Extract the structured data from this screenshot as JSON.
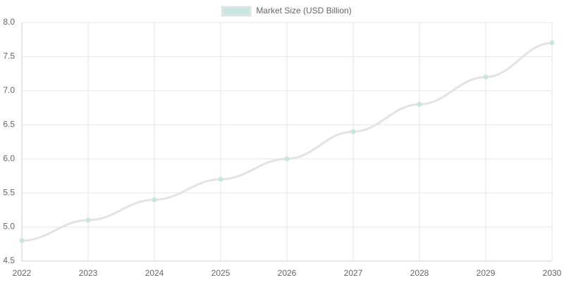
{
  "chart_data": {
    "type": "line",
    "categories": [
      "2022",
      "2023",
      "2024",
      "2025",
      "2026",
      "2027",
      "2028",
      "2029",
      "2030"
    ],
    "series": [
      {
        "name": "Market Size (USD Billion)",
        "color": "#e3e3e3",
        "point_color": "#c6e6df",
        "values": [
          4.8,
          5.1,
          5.4,
          5.7,
          6.0,
          6.4,
          6.8,
          7.2,
          7.7
        ]
      }
    ],
    "ylim": [
      4.5,
      8.0
    ],
    "yticks": [
      4.5,
      {
        "value": 5,
        "label": "5.0"
      },
      5.5,
      {
        "value": 6,
        "label": "6.0"
      },
      6.5,
      {
        "value": 7,
        "label": "7.0"
      },
      7.5,
      {
        "value": 8,
        "label": "8.0"
      }
    ],
    "grid": true,
    "legend": "top"
  }
}
